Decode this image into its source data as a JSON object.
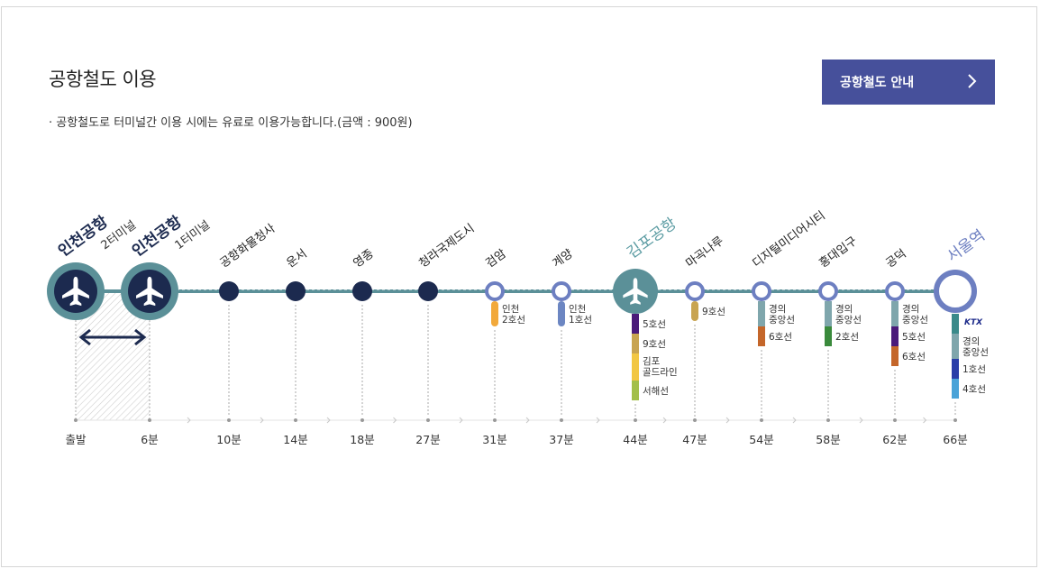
{
  "header": {
    "title": "공항철도 이용",
    "note": "·  공항철도로 터미널간 이용 시에는 유료로 이용가능합니다.(금액 : 900원)",
    "guide_button": "공항철도 안내"
  },
  "stations": [
    {
      "id": "t2",
      "name": "인천공항",
      "sub": "2터미널",
      "type": "airport",
      "time": "출발",
      "lines": []
    },
    {
      "id": "t1",
      "name": "인천공항",
      "sub": "1터미널",
      "type": "airport",
      "time": "6분",
      "lines": []
    },
    {
      "id": "cargo",
      "name": "공항화물청사",
      "type": "dark",
      "time": "10분",
      "lines": []
    },
    {
      "id": "unseo",
      "name": "운서",
      "type": "dark",
      "time": "14분",
      "lines": []
    },
    {
      "id": "yeongjong",
      "name": "영종",
      "type": "dark",
      "time": "18분",
      "lines": []
    },
    {
      "id": "cheongna",
      "name": "청라국제도시",
      "type": "dark",
      "time": "27분",
      "lines": []
    },
    {
      "id": "geomam",
      "name": "검암",
      "type": "transfer",
      "time": "31분",
      "lines": [
        {
          "label": "인천\n2호선",
          "color": "#f2a93b"
        }
      ]
    },
    {
      "id": "gyeyang",
      "name": "계양",
      "type": "transfer",
      "time": "37분",
      "lines": [
        {
          "label": "인천\n1호선",
          "color": "#6c86c2"
        }
      ]
    },
    {
      "id": "gimpo",
      "name": "김포공항",
      "type": "gimpo",
      "time": "44분",
      "lines": [
        {
          "label": "5호선",
          "color": "#4a1a7a"
        },
        {
          "label": "9호선",
          "color": "#c8a451"
        },
        {
          "label": "김포\n골드라인",
          "color": "#f2c744"
        },
        {
          "label": "서해선",
          "color": "#a3bf4a"
        }
      ]
    },
    {
      "id": "magongnaru",
      "name": "마곡나루",
      "type": "transfer",
      "time": "47분",
      "lines": [
        {
          "label": "9호선",
          "color": "#c8a451"
        }
      ]
    },
    {
      "id": "dmc",
      "name": "디지털미디어시티",
      "type": "transfer",
      "time": "54분",
      "lines": [
        {
          "label": "경의\n중앙선",
          "color": "#7fa6ac"
        },
        {
          "label": "6호선",
          "color": "#c4662a"
        }
      ]
    },
    {
      "id": "hongdae",
      "name": "홍대입구",
      "type": "transfer",
      "time": "58분",
      "lines": [
        {
          "label": "경의\n중앙선",
          "color": "#7fa6ac"
        },
        {
          "label": "2호선",
          "color": "#3a8a3c"
        }
      ]
    },
    {
      "id": "gongdeok",
      "name": "공덕",
      "type": "transfer",
      "time": "62분",
      "lines": [
        {
          "label": "경의\n중앙선",
          "color": "#7fa6ac"
        },
        {
          "label": "5호선",
          "color": "#4a1a7a"
        },
        {
          "label": "6호선",
          "color": "#c4662a"
        }
      ]
    },
    {
      "id": "seoul",
      "name": "서울역",
      "type": "seoul",
      "time": "66분",
      "lines": [
        {
          "label": "KTX",
          "color": "#3a8a8a",
          "ktx": true
        },
        {
          "label": "경의\n중앙선",
          "color": "#7fa6ac"
        },
        {
          "label": "1호선",
          "color": "#2a3ea8"
        },
        {
          "label": "4호선",
          "color": "#4aa3d8"
        }
      ]
    }
  ],
  "colors": {
    "line": "#5b9098",
    "dark_station": "#1c2a4f",
    "transfer_ring": "#6d7fc1",
    "airport_ring": "#5b9098",
    "gimpo_label": "#5a9ba2",
    "seoul_label": "#6d7fc1",
    "button": "#46509b"
  },
  "icons": {
    "airport": "airplane-icon",
    "chevron": "chevron-right-icon",
    "transfer_arrow": "double-arrow-icon"
  }
}
